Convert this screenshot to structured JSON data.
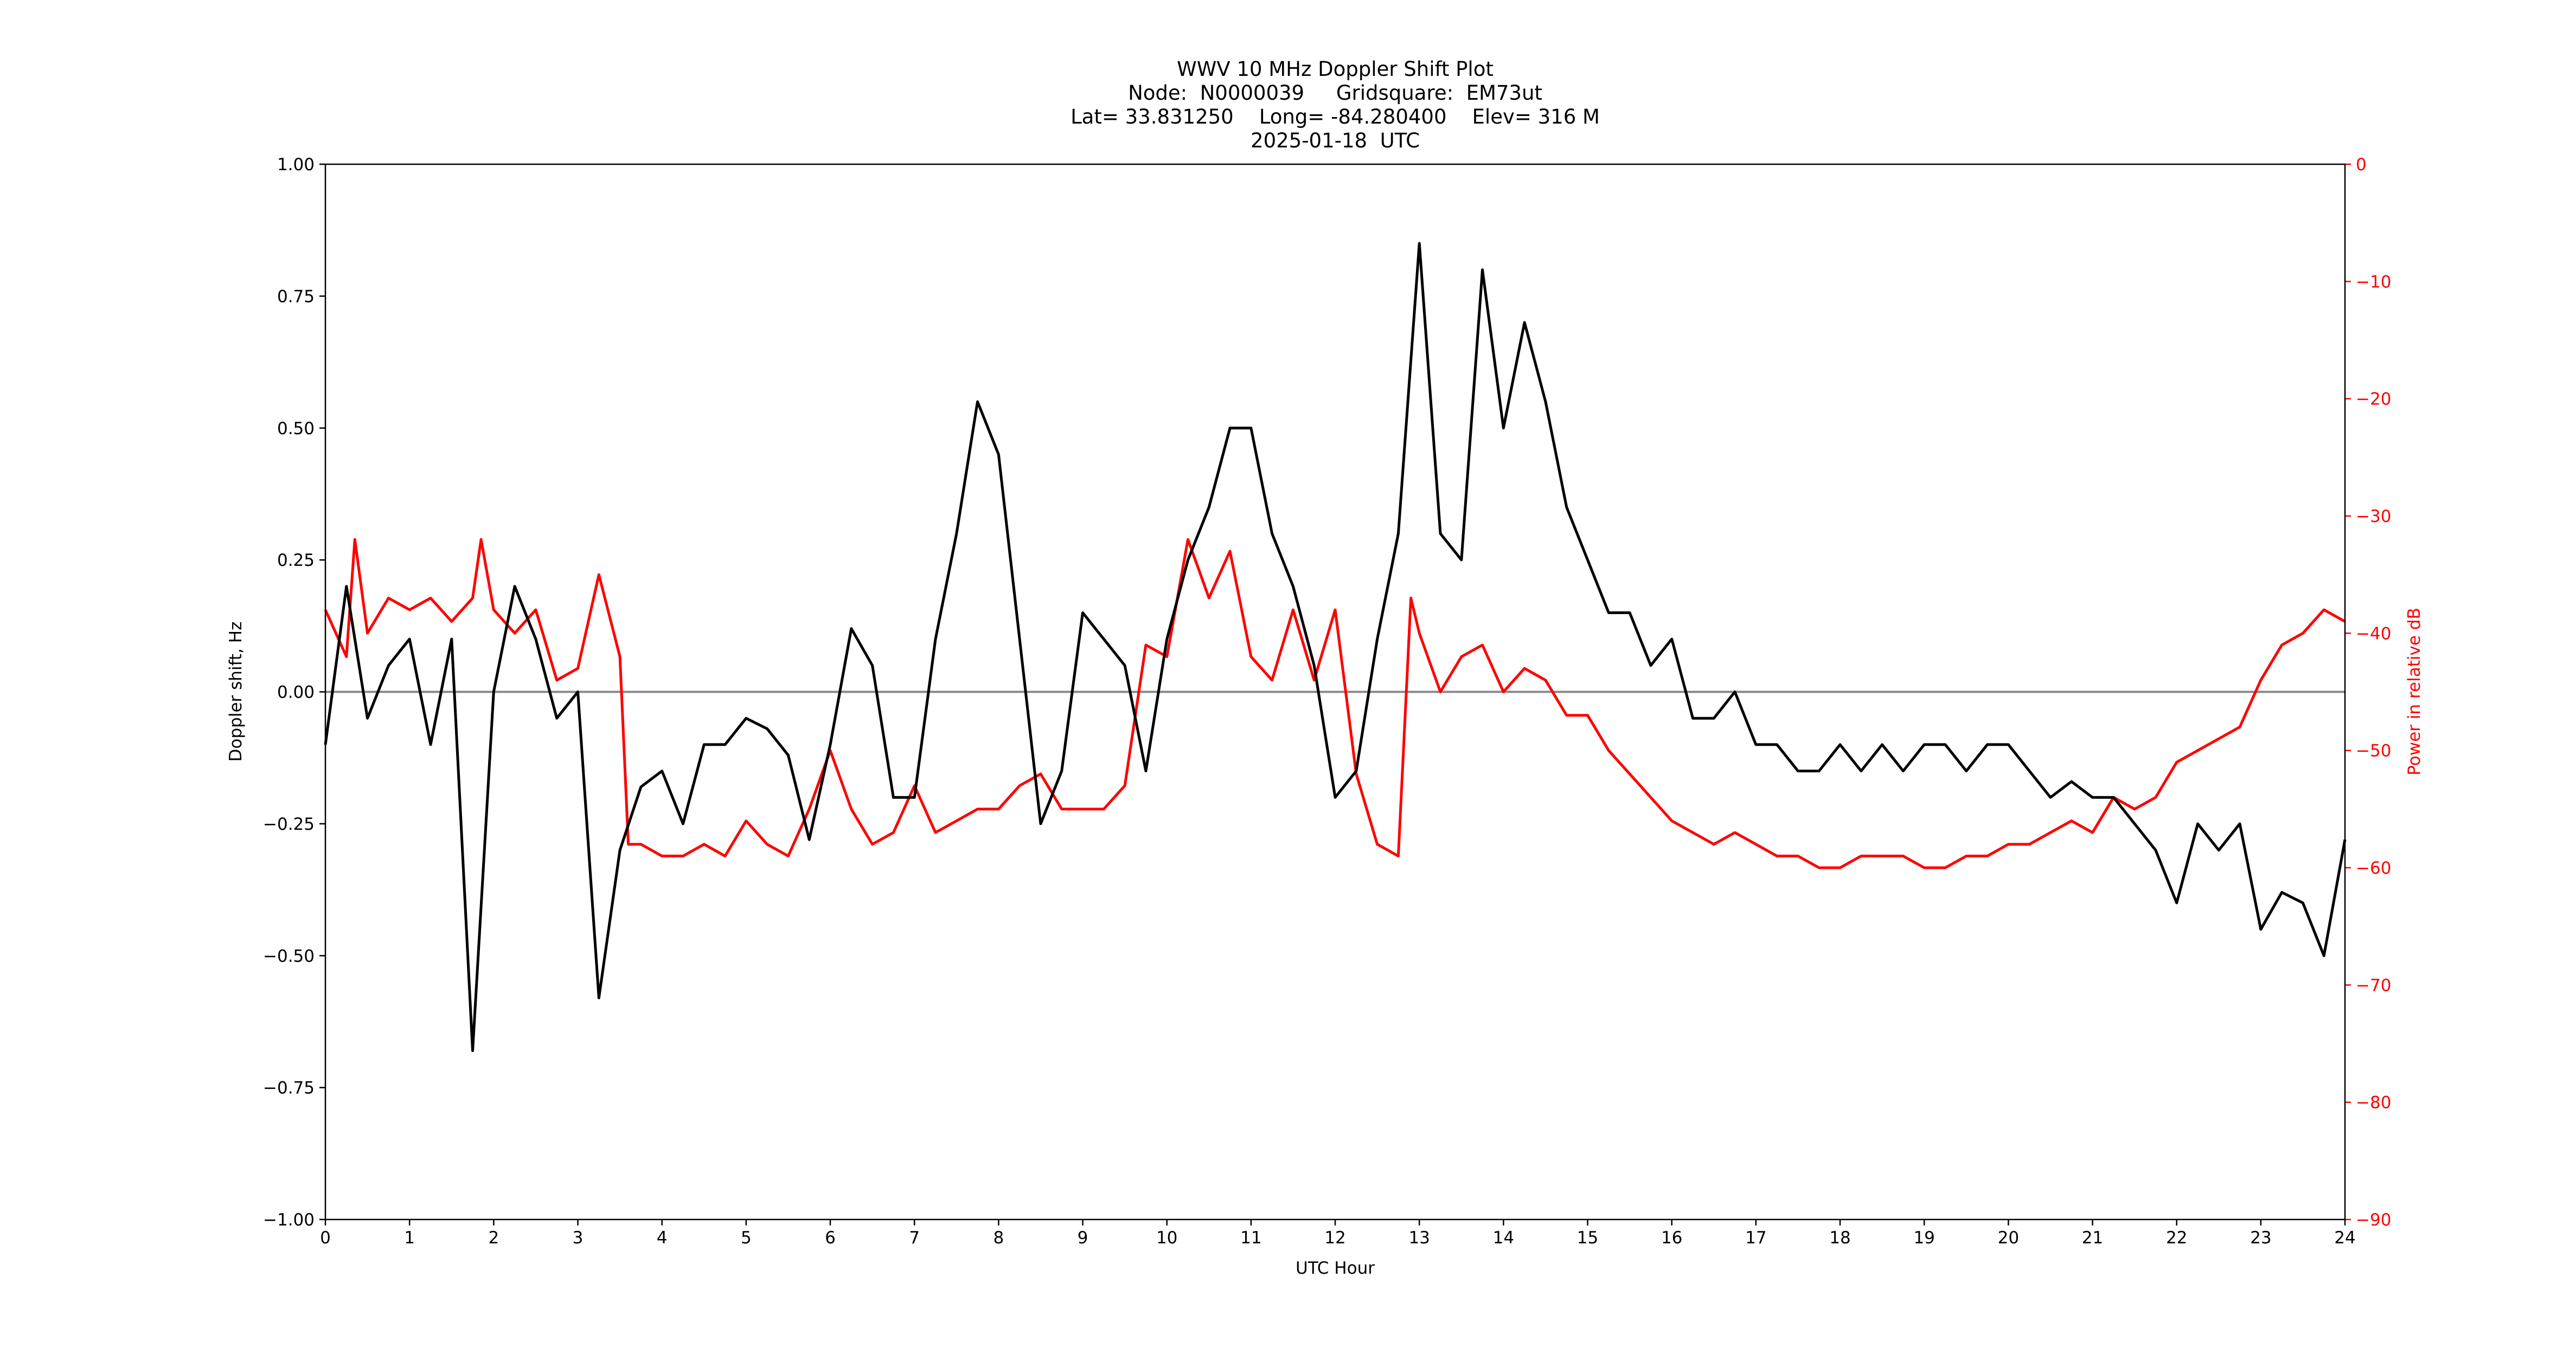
{
  "chart_data": {
    "type": "line",
    "title": [
      "WWV 10 MHz Doppler Shift Plot",
      "Node:  N0000039     Gridsquare:  EM73ut",
      "Lat= 33.831250    Long= -84.280400    Elev= 316 M",
      "2025-01-18  UTC"
    ],
    "x_label": "UTC Hour",
    "y_label": "Doppler shift, Hz",
    "y2_label": "Power in relative dB",
    "xlim": [
      0,
      24
    ],
    "xticks": [
      0,
      1,
      2,
      3,
      4,
      5,
      6,
      7,
      8,
      9,
      10,
      11,
      12,
      13,
      14,
      15,
      16,
      17,
      18,
      19,
      20,
      21,
      22,
      23,
      24
    ],
    "ylim": [
      -1,
      1
    ],
    "yticks": [
      {
        "value": -1,
        "label": "−1.00"
      },
      {
        "value": -0.75,
        "label": "−0.75"
      },
      {
        "value": -0.5,
        "label": "−0.50"
      },
      {
        "value": -0.25,
        "label": "−0.25"
      },
      {
        "value": 0,
        "label": "0.00"
      },
      {
        "value": 0.25,
        "label": "0.25"
      },
      {
        "value": 0.5,
        "label": "0.50"
      },
      {
        "value": 0.75,
        "label": "0.75"
      },
      {
        "value": 1,
        "label": "1.00"
      }
    ],
    "y2lim": [
      -90,
      0
    ],
    "y2ticks": [
      {
        "value": -90,
        "label": "−90"
      },
      {
        "value": -80,
        "label": "−80"
      },
      {
        "value": -70,
        "label": "−70"
      },
      {
        "value": -60,
        "label": "−60"
      },
      {
        "value": -50,
        "label": "−50"
      },
      {
        "value": -40,
        "label": "−40"
      },
      {
        "value": -30,
        "label": "−30"
      },
      {
        "value": -20,
        "label": "−20"
      },
      {
        "value": -10,
        "label": "−10"
      },
      0
    ],
    "y2_color": "#ff0000",
    "hline": 0,
    "hline_color": "#888888",
    "series": [
      {
        "color": "#000000",
        "x": [
          0,
          0.25,
          0.5,
          0.75,
          1,
          1.25,
          1.5,
          1.75,
          2,
          2.25,
          2.5,
          2.75,
          3,
          3.25,
          3.5,
          3.75,
          4,
          4.25,
          4.5,
          4.75,
          5,
          5.25,
          5.5,
          5.75,
          6,
          6.25,
          6.5,
          6.75,
          7,
          7.25,
          7.5,
          7.75,
          8,
          8.25,
          8.5,
          8.75,
          9,
          9.25,
          9.5,
          9.75,
          10,
          10.25,
          10.5,
          10.75,
          11,
          11.25,
          11.5,
          11.75,
          12,
          12.25,
          12.5,
          12.75,
          13,
          13.25,
          13.5,
          13.75,
          14,
          14.25,
          14.5,
          14.75,
          15,
          15.25,
          15.5,
          15.75,
          16,
          16.25,
          16.5,
          16.75,
          17,
          17.25,
          17.5,
          17.75,
          18,
          18.25,
          18.5,
          18.75,
          19,
          19.25,
          19.5,
          19.75,
          20,
          20.25,
          20.5,
          20.75,
          21,
          21.25,
          21.5,
          21.75,
          22,
          22.25,
          22.5,
          22.75,
          23,
          23.25,
          23.5,
          23.75,
          24
        ],
        "values": [
          -0.1,
          0.2,
          -0.05,
          0.05,
          0.1,
          -0.1,
          0.1,
          -0.68,
          0,
          0.2,
          0.1,
          -0.05,
          0,
          -0.58,
          -0.3,
          -0.18,
          -0.15,
          -0.25,
          -0.1,
          -0.1,
          -0.05,
          -0.07,
          -0.12,
          -0.28,
          -0.1,
          0.12,
          0.05,
          -0.2,
          -0.2,
          0.1,
          0.3,
          0.55,
          0.45,
          0.1,
          -0.25,
          -0.15,
          0.15,
          0.1,
          0.05,
          -0.15,
          0.1,
          0.25,
          0.35,
          0.5,
          0.5,
          0.3,
          0.2,
          0.05,
          -0.2,
          -0.15,
          0.1,
          0.3,
          0.85,
          0.3,
          0.25,
          0.8,
          0.5,
          0.7,
          0.55,
          0.35,
          0.25,
          0.15,
          0.15,
          0.05,
          0.1,
          -0.05,
          -0.05,
          0,
          -0.1,
          -0.1,
          -0.15,
          -0.15,
          -0.1,
          -0.15,
          -0.1,
          -0.15,
          -0.1,
          -0.1,
          -0.15,
          -0.1,
          -0.1,
          -0.15,
          -0.2,
          -0.17,
          -0.2,
          -0.2,
          -0.25,
          -0.3,
          -0.4,
          -0.25,
          -0.3,
          -0.25,
          -0.45,
          -0.38,
          -0.4,
          -0.5,
          -0.28
        ]
      },
      {
        "color": "#ff0000",
        "axis": "y2",
        "x": [
          0,
          0.25,
          0.35,
          0.5,
          0.75,
          1,
          1.25,
          1.5,
          1.75,
          1.85,
          2,
          2.25,
          2.5,
          2.75,
          3,
          3.25,
          3.5,
          3.6,
          3.75,
          4,
          4.25,
          4.5,
          4.75,
          5,
          5.25,
          5.5,
          5.75,
          6,
          6.25,
          6.5,
          6.75,
          7,
          7.25,
          7.5,
          7.75,
          8,
          8.25,
          8.5,
          8.75,
          9,
          9.25,
          9.5,
          9.75,
          10,
          10.25,
          10.5,
          10.75,
          11,
          11.25,
          11.5,
          11.75,
          12,
          12.25,
          12.5,
          12.75,
          12.9,
          13,
          13.25,
          13.5,
          13.75,
          14,
          14.25,
          14.5,
          14.75,
          15,
          15.25,
          15.5,
          15.75,
          16,
          16.25,
          16.5,
          16.75,
          17,
          17.25,
          17.5,
          17.75,
          18,
          18.25,
          18.5,
          18.75,
          19,
          19.25,
          19.5,
          19.75,
          20,
          20.25,
          20.5,
          20.75,
          21,
          21.25,
          21.5,
          21.75,
          22,
          22.25,
          22.5,
          22.75,
          23,
          23.25,
          23.5,
          23.75,
          24
        ],
        "values": [
          -38,
          -42,
          -32,
          -40,
          -37,
          -38,
          -37,
          -39,
          -37,
          -32,
          -38,
          -40,
          -38,
          -44,
          -43,
          -35,
          -42,
          -58,
          -58,
          -59,
          -59,
          -58,
          -59,
          -56,
          -58,
          -59,
          -55,
          -50,
          -55,
          -58,
          -57,
          -53,
          -57,
          -56,
          -55,
          -55,
          -53,
          -52,
          -55,
          -55,
          -55,
          -53,
          -41,
          -42,
          -32,
          -37,
          -33,
          -42,
          -44,
          -38,
          -44,
          -38,
          -52,
          -58,
          -59,
          -37,
          -40,
          -45,
          -42,
          -41,
          -45,
          -43,
          -44,
          -47,
          -47,
          -50,
          -52,
          -54,
          -56,
          -57,
          -58,
          -57,
          -58,
          -59,
          -59,
          -60,
          -60,
          -59,
          -59,
          -59,
          -60,
          -60,
          -59,
          -59,
          -58,
          -58,
          -57,
          -56,
          -57,
          -54,
          -55,
          -54,
          -51,
          -50,
          -49,
          -48,
          -44,
          -41,
          -40,
          -38,
          -39
        ]
      }
    ]
  }
}
